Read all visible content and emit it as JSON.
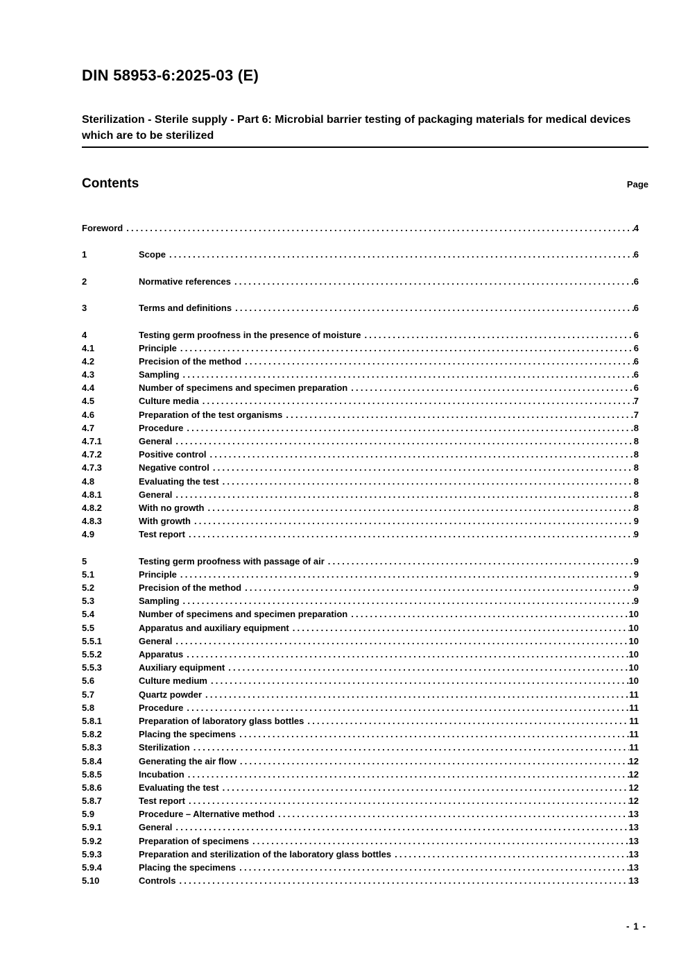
{
  "header": {
    "doc_code": "DIN 58953-6:2025-03 (E)",
    "title": "Sterilization - Sterile supply - Part 6: Microbial barrier testing of packaging materials for medical devices which are to be sterilized"
  },
  "contents": {
    "heading": "Contents",
    "page_column_label": "Page"
  },
  "toc_entries": [
    {
      "num": "",
      "label": "Foreword",
      "page": "4",
      "gap_before": false
    },
    {
      "num": "1",
      "label": "Scope",
      "page": "6",
      "gap_before": true
    },
    {
      "num": "2",
      "label": "Normative references",
      "page": "6",
      "gap_before": true
    },
    {
      "num": "3",
      "label": "Terms and definitions",
      "page": "6",
      "gap_before": true
    },
    {
      "num": "4",
      "label": "Testing germ proofness in the presence of moisture",
      "page": "6",
      "gap_before": true
    },
    {
      "num": "4.1",
      "label": "Principle",
      "page": "6",
      "gap_before": false
    },
    {
      "num": "4.2",
      "label": "Precision of the method",
      "page": "6",
      "gap_before": false
    },
    {
      "num": "4.3",
      "label": "Sampling",
      "page": "6",
      "gap_before": false
    },
    {
      "num": "4.4",
      "label": "Number of specimens and specimen preparation",
      "page": "6",
      "gap_before": false
    },
    {
      "num": "4.5",
      "label": "Culture media",
      "page": "7",
      "gap_before": false
    },
    {
      "num": "4.6",
      "label": "Preparation of the test organisms",
      "page": "7",
      "gap_before": false
    },
    {
      "num": "4.7",
      "label": "Procedure",
      "page": "8",
      "gap_before": false
    },
    {
      "num": "4.7.1",
      "label": "General",
      "page": "8",
      "gap_before": false
    },
    {
      "num": "4.7.2",
      "label": "Positive control",
      "page": "8",
      "gap_before": false
    },
    {
      "num": "4.7.3",
      "label": "Negative control",
      "page": "8",
      "gap_before": false
    },
    {
      "num": "4.8",
      "label": "Evaluating the test",
      "page": "8",
      "gap_before": false
    },
    {
      "num": "4.8.1",
      "label": "General",
      "page": "8",
      "gap_before": false
    },
    {
      "num": "4.8.2",
      "label": "With no growth",
      "page": "8",
      "gap_before": false
    },
    {
      "num": "4.8.3",
      "label": "With growth",
      "page": "9",
      "gap_before": false
    },
    {
      "num": "4.9",
      "label": "Test report",
      "page": "9",
      "gap_before": false
    },
    {
      "num": "5",
      "label": "Testing germ proofness with passage of air",
      "page": "9",
      "gap_before": true
    },
    {
      "num": "5.1",
      "label": "Principle",
      "page": "9",
      "gap_before": false
    },
    {
      "num": "5.2",
      "label": "Precision of the method",
      "page": "9",
      "gap_before": false
    },
    {
      "num": "5.3",
      "label": "Sampling",
      "page": "9",
      "gap_before": false
    },
    {
      "num": "5.4",
      "label": "Number of specimens and specimen preparation",
      "page": "10",
      "gap_before": false
    },
    {
      "num": "5.5",
      "label": "Apparatus and auxiliary equipment",
      "page": "10",
      "gap_before": false
    },
    {
      "num": "5.5.1",
      "label": "General",
      "page": "10",
      "gap_before": false
    },
    {
      "num": "5.5.2",
      "label": "Apparatus",
      "page": "10",
      "gap_before": false
    },
    {
      "num": "5.5.3",
      "label": "Auxiliary equipment",
      "page": "10",
      "gap_before": false
    },
    {
      "num": "5.6",
      "label": "Culture medium",
      "page": "10",
      "gap_before": false
    },
    {
      "num": "5.7",
      "label": "Quartz powder",
      "page": "11",
      "gap_before": false
    },
    {
      "num": "5.8",
      "label": "Procedure",
      "page": "11",
      "gap_before": false
    },
    {
      "num": "5.8.1",
      "label": "Preparation of laboratory glass bottles",
      "page": "11",
      "gap_before": false
    },
    {
      "num": "5.8.2",
      "label": "Placing the specimens",
      "page": "11",
      "gap_before": false
    },
    {
      "num": "5.8.3",
      "label": "Sterilization",
      "page": "11",
      "gap_before": false
    },
    {
      "num": "5.8.4",
      "label": "Generating the air flow",
      "page": "12",
      "gap_before": false
    },
    {
      "num": "5.8.5",
      "label": "Incubation",
      "page": "12",
      "gap_before": false
    },
    {
      "num": "5.8.6",
      "label": "Evaluating the test",
      "page": "12",
      "gap_before": false
    },
    {
      "num": "5.8.7",
      "label": "Test report",
      "page": "12",
      "gap_before": false
    },
    {
      "num": "5.9",
      "label": "Procedure – Alternative method",
      "page": "13",
      "gap_before": false
    },
    {
      "num": "5.9.1",
      "label": "General",
      "page": "13",
      "gap_before": false
    },
    {
      "num": "5.9.2",
      "label": "Preparation of specimens",
      "page": "13",
      "gap_before": false
    },
    {
      "num": "5.9.3",
      "label": "Preparation and sterilization of the laboratory glass bottles",
      "page": "13",
      "gap_before": false
    },
    {
      "num": "5.9.4",
      "label": "Placing the specimens",
      "page": "13",
      "gap_before": false
    },
    {
      "num": "5.10",
      "label": "Controls",
      "page": "13",
      "gap_before": false
    }
  ],
  "footer": {
    "page_number": "- 1 -"
  },
  "colors": {
    "text": "#000000",
    "background": "#ffffff"
  }
}
